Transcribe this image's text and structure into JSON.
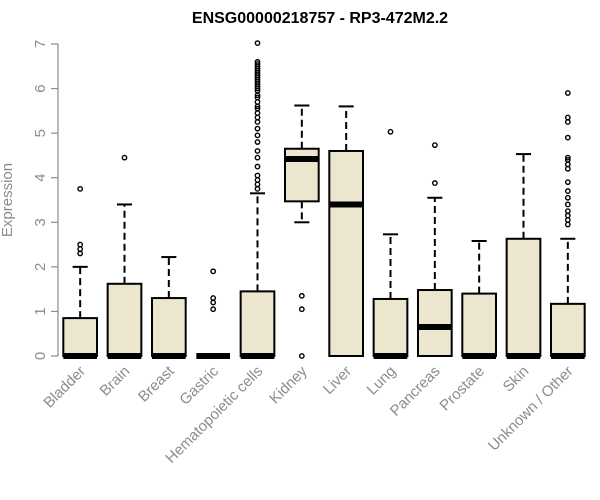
{
  "colors": {
    "box_fill": "#ede6cf",
    "outline": "#000000",
    "axis_text": "#8c8c8c",
    "axis_line": "#8c8c8c"
  },
  "chart_data": {
    "type": "boxplot",
    "title": "ENSG00000218757 - RP3-472M2.2",
    "xlabel": "",
    "ylabel": "Expression",
    "ylim": [
      0,
      7
    ],
    "yticks": [
      0,
      1,
      2,
      3,
      4,
      5,
      6,
      7
    ],
    "categories": [
      "Bladder",
      "Brain",
      "Breast",
      "Gastric",
      "Hematopoietic cells",
      "Kidney",
      "Liver",
      "Lung",
      "Pancreas",
      "Prostate",
      "Skin",
      "Unknown / Other"
    ],
    "series": [
      {
        "name": "Bladder",
        "lower_whisker": 0,
        "q1": 0,
        "median": 0,
        "q3": 0.85,
        "upper_whisker": 2.0,
        "outliers": [
          2.3,
          2.4,
          2.5,
          3.75
        ]
      },
      {
        "name": "Brain",
        "lower_whisker": 0,
        "q1": 0,
        "median": 0,
        "q3": 1.62,
        "upper_whisker": 3.4,
        "outliers": [
          4.45
        ]
      },
      {
        "name": "Breast",
        "lower_whisker": 0,
        "q1": 0,
        "median": 0,
        "q3": 1.3,
        "upper_whisker": 2.22,
        "outliers": []
      },
      {
        "name": "Gastric",
        "lower_whisker": 0,
        "q1": 0,
        "median": 0,
        "q3": 0,
        "upper_whisker": 0,
        "outliers": [
          1.05,
          1.2,
          1.3,
          1.9
        ]
      },
      {
        "name": "Hematopoietic cells",
        "lower_whisker": 0,
        "q1": 0,
        "median": 0,
        "q3": 1.45,
        "upper_whisker": 3.65,
        "outliers": [
          3.75,
          3.85,
          3.95,
          4.05,
          4.25,
          4.45,
          4.6,
          4.8,
          4.95,
          5.1,
          5.25,
          5.35,
          5.45,
          5.55,
          5.6,
          5.7,
          5.8,
          5.85,
          5.95,
          6.0,
          6.05,
          6.1,
          6.15,
          6.2,
          6.25,
          6.3,
          6.35,
          6.4,
          6.45,
          6.5,
          6.55,
          6.6,
          7.02
        ]
      },
      {
        "name": "Kidney",
        "lower_whisker": 3.0,
        "q1": 3.47,
        "median": 4.42,
        "q3": 4.65,
        "upper_whisker": 5.62,
        "outliers": [
          0,
          1.05,
          1.35
        ]
      },
      {
        "name": "Liver",
        "lower_whisker": 0,
        "q1": 0,
        "median": 3.4,
        "q3": 4.6,
        "upper_whisker": 5.6,
        "outliers": []
      },
      {
        "name": "Lung",
        "lower_whisker": 0,
        "q1": 0,
        "median": 0,
        "q3": 1.28,
        "upper_whisker": 2.73,
        "outliers": [
          5.03
        ]
      },
      {
        "name": "Pancreas",
        "lower_whisker": 0,
        "q1": 0,
        "median": 0.65,
        "q3": 1.48,
        "upper_whisker": 3.55,
        "outliers": [
          3.88,
          4.73
        ]
      },
      {
        "name": "Prostate",
        "lower_whisker": 0,
        "q1": 0,
        "median": 0,
        "q3": 1.4,
        "upper_whisker": 2.58,
        "outliers": []
      },
      {
        "name": "Skin",
        "lower_whisker": 0,
        "q1": 0,
        "median": 0,
        "q3": 2.63,
        "upper_whisker": 4.53,
        "outliers": []
      },
      {
        "name": "Unknown / Other",
        "lower_whisker": 0,
        "q1": 0,
        "median": 0,
        "q3": 1.17,
        "upper_whisker": 2.63,
        "outliers": [
          2.95,
          3.05,
          3.15,
          3.25,
          3.4,
          3.55,
          3.7,
          3.9,
          4.2,
          4.3,
          4.4,
          4.45,
          4.9,
          5.25,
          5.35,
          5.9
        ]
      }
    ]
  }
}
